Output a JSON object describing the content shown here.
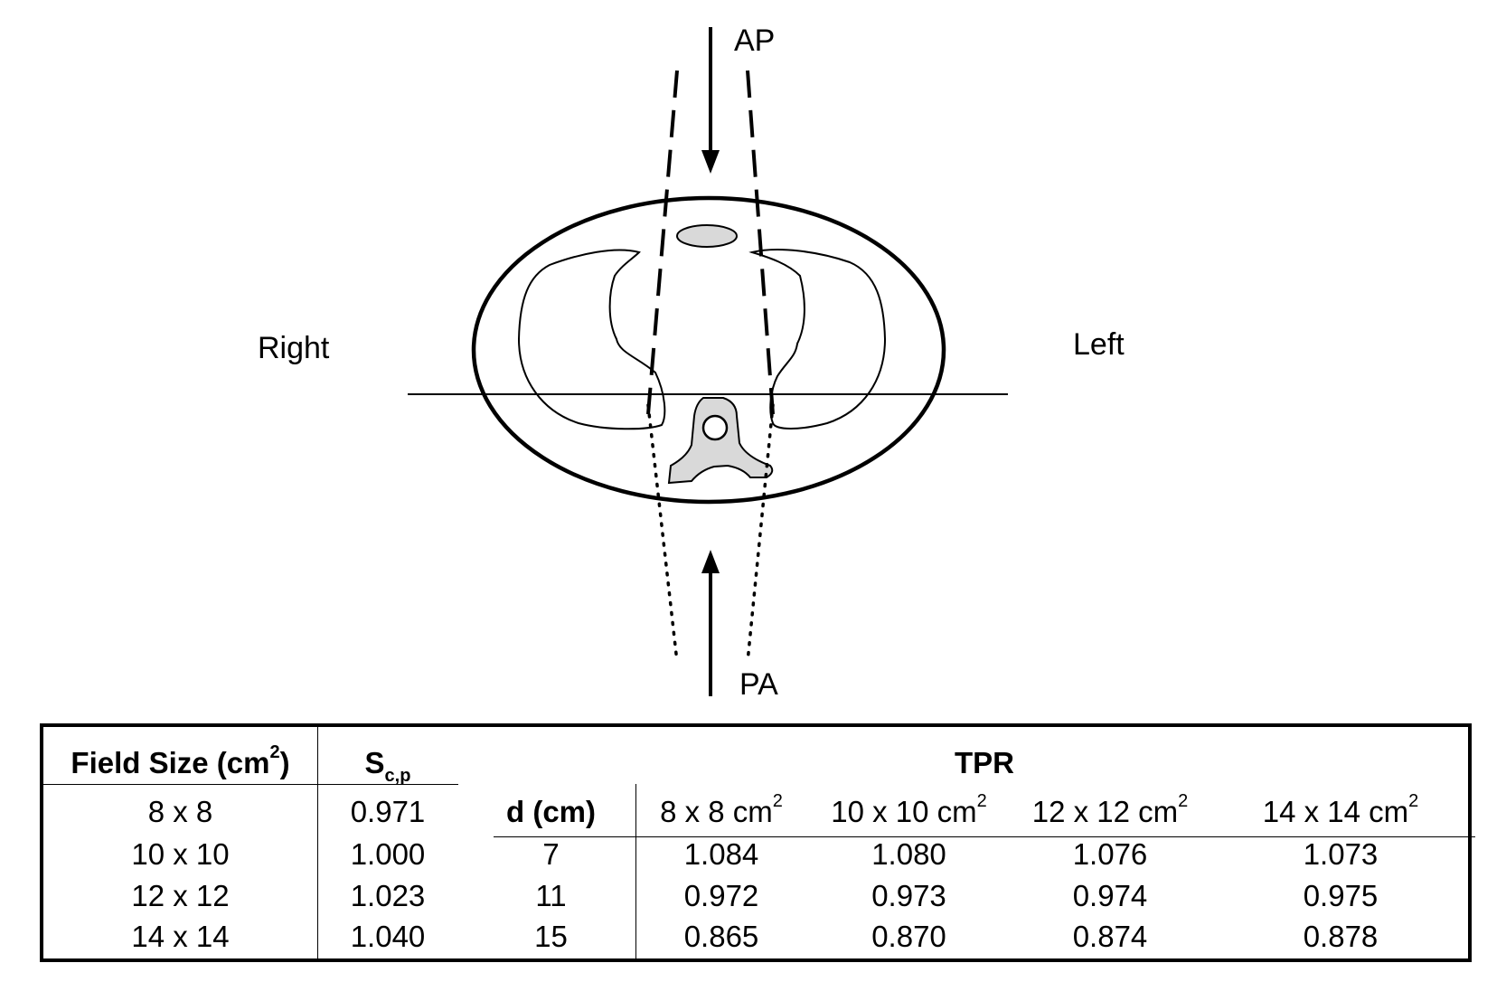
{
  "diagram": {
    "labels": {
      "ap": "AP",
      "pa": "PA",
      "right": "Right",
      "left": "Left"
    }
  },
  "table": {
    "field_size_header": "Field Size (cm",
    "field_size_header_sup": "2",
    "field_size_header_close": ")",
    "scp_header": "S",
    "scp_header_sub": "c,p",
    "tpr_header": "TPR",
    "depth_header": "d (cm)",
    "tpr_columns": [
      {
        "label": "8 x 8 cm",
        "sup": "2"
      },
      {
        "label": "10 x 10 cm",
        "sup": "2"
      },
      {
        "label": "12 x 12 cm",
        "sup": "2"
      },
      {
        "label": "14 x 14 cm",
        "sup": "2"
      }
    ],
    "field_rows": [
      {
        "field_size": "8 x 8",
        "scp": "0.971"
      },
      {
        "field_size": "10 x 10",
        "scp": "1.000"
      },
      {
        "field_size": "12 x 12",
        "scp": "1.023"
      },
      {
        "field_size": "14 x 14",
        "scp": "1.040"
      }
    ],
    "tpr_rows": [
      {
        "d": "7",
        "values": [
          "1.084",
          "1.080",
          "1.076",
          "1.073"
        ]
      },
      {
        "d": "11",
        "values": [
          "0.972",
          "0.973",
          "0.974",
          "0.975"
        ]
      },
      {
        "d": "15",
        "values": [
          "0.865",
          "0.870",
          "0.874",
          "0.878"
        ]
      }
    ]
  }
}
